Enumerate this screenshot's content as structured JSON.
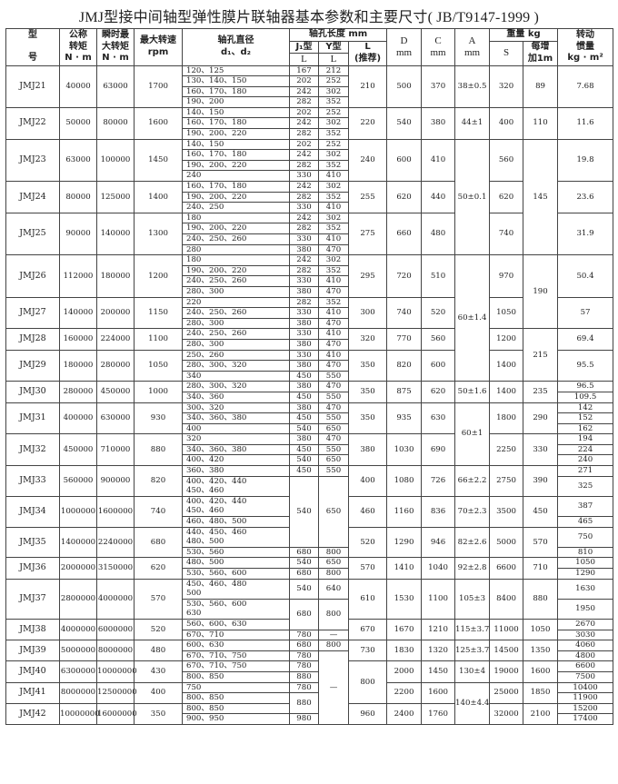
{
  "title": "JMJ型接中间轴型弹性膜片联轴器基本参数和主要尺寸",
  "standard": "( JB/T9147-1999 )",
  "header": {
    "model": "型\n\n号",
    "torque": "公称\n转矩\nN · m",
    "max_torque": "瞬时最\n大转矩\nN · m",
    "speed": "最大转速\nrpm",
    "bore": "轴孔直径\nd₁、d₂",
    "length": "轴孔长度 mm",
    "j_type": "J₁型",
    "y_type": "Y型",
    "l_rec": "L\n(推荐)",
    "j_l": "L",
    "y_l": "L",
    "d": "D\nmm",
    "c": "C\nmm",
    "a": "A\nmm",
    "weight": "重量 kg",
    "s": "S",
    "per_m": "每增\n加1m",
    "inertia": "转动\n惯量\nkg · m²"
  },
  "models": [
    {
      "model": "JMJ21",
      "torque": "40000",
      "max_torque": "63000",
      "speed": "1700",
      "bores": [
        {
          "d": "120、125",
          "J": "167",
          "Y": "212"
        },
        {
          "d": "130、140、150",
          "J": "202",
          "Y": "252"
        },
        {
          "d": "160、170、180",
          "J": "242",
          "Y": "302"
        },
        {
          "d": "190、200",
          "J": "282",
          "Y": "352"
        }
      ],
      "L": "210",
      "D": "500",
      "C": "370",
      "A": "38±0.5",
      "S": "320",
      "per_m": "89",
      "inertia": [
        "7.68"
      ]
    },
    {
      "model": "JMJ22",
      "torque": "50000",
      "max_torque": "80000",
      "speed": "1600",
      "bores": [
        {
          "d": "140、150",
          "J": "202",
          "Y": "252"
        },
        {
          "d": "160、170、180",
          "J": "242",
          "Y": "302"
        },
        {
          "d": "190、200、220",
          "J": "282",
          "Y": "352"
        }
      ],
      "L": "220",
      "D": "540",
      "C": "380",
      "A": "44±1",
      "S": "400",
      "per_m": "110",
      "inertia": [
        "11.6"
      ]
    },
    {
      "model": "JMJ23",
      "torque": "63000",
      "max_torque": "100000",
      "speed": "1450",
      "bores": [
        {
          "d": "140、150",
          "J": "202",
          "Y": "252"
        },
        {
          "d": "160、170、180",
          "J": "242",
          "Y": "302"
        },
        {
          "d": "190、200、220",
          "J": "282",
          "Y": "352"
        },
        {
          "d": "240",
          "J": "330",
          "Y": "410"
        }
      ],
      "L": "240",
      "D": "600",
      "C": "410",
      "A": "50±0.1",
      "S": "560",
      "per_m": "145",
      "inertia": [
        "19.8"
      ]
    },
    {
      "model": "JMJ24",
      "torque": "80000",
      "max_torque": "125000",
      "speed": "1400",
      "bores": [
        {
          "d": "160、170、180",
          "J": "242",
          "Y": "302"
        },
        {
          "d": "190、200、220",
          "J": "282",
          "Y": "352"
        },
        {
          "d": "240、250",
          "J": "330",
          "Y": "410"
        }
      ],
      "L": "255",
      "D": "620",
      "C": "440",
      "A": null,
      "S": "620",
      "per_m": null,
      "inertia": [
        "23.6"
      ]
    },
    {
      "model": "JMJ25",
      "torque": "90000",
      "max_torque": "140000",
      "speed": "1300",
      "bores": [
        {
          "d": "180",
          "J": "242",
          "Y": "302"
        },
        {
          "d": "190、200、220",
          "J": "282",
          "Y": "352"
        },
        {
          "d": "240、250、260",
          "J": "330",
          "Y": "410"
        },
        {
          "d": "280",
          "J": "380",
          "Y": "470"
        }
      ],
      "L": "275",
      "D": "660",
      "C": "480",
      "A": null,
      "S": "740",
      "per_m": null,
      "inertia": [
        "31.9"
      ]
    },
    {
      "model": "JMJ26",
      "torque": "112000",
      "max_torque": "180000",
      "speed": "1200",
      "bores": [
        {
          "d": "180",
          "J": "242",
          "Y": "302"
        },
        {
          "d": "190、200、220",
          "J": "282",
          "Y": "352"
        },
        {
          "d": "240、250、260",
          "J": "330",
          "Y": "410"
        },
        {
          "d": "280、300",
          "J": "380",
          "Y": "470"
        }
      ],
      "L": "295",
      "D": "720",
      "C": "510",
      "A": "60±1.4",
      "S": "970",
      "per_m": "190",
      "inertia": [
        "50.4"
      ]
    },
    {
      "model": "JMJ27",
      "torque": "140000",
      "max_torque": "200000",
      "speed": "1150",
      "bores": [
        {
          "d": "220",
          "J": "282",
          "Y": "352"
        },
        {
          "d": "240、250、260",
          "J": "330",
          "Y": "410"
        },
        {
          "d": "280、300",
          "J": "380",
          "Y": "470"
        }
      ],
      "L": "300",
      "D": "740",
      "C": "520",
      "A": null,
      "S": "1050",
      "per_m": null,
      "inertia": [
        "57"
      ]
    },
    {
      "model": "JMJ28",
      "torque": "160000",
      "max_torque": "224000",
      "speed": "1100",
      "bores": [
        {
          "d": "240、250、260",
          "J": "330",
          "Y": "410"
        },
        {
          "d": "280、300",
          "J": "380",
          "Y": "470"
        }
      ],
      "L": "320",
      "D": "770",
      "C": "560",
      "A": null,
      "S": "1200",
      "per_m": "215",
      "inertia": [
        "69.4"
      ]
    },
    {
      "model": "JMJ29",
      "torque": "180000",
      "max_torque": "280000",
      "speed": "1050",
      "bores": [
        {
          "d": "250、260",
          "J": "330",
          "Y": "410"
        },
        {
          "d": "280、300、320",
          "J": "380",
          "Y": "470"
        },
        {
          "d": "340",
          "J": "450",
          "Y": "550"
        }
      ],
      "L": "350",
      "D": "820",
      "C": "600",
      "A": null,
      "S": "1400",
      "per_m": null,
      "inertia": [
        "95.5"
      ]
    },
    {
      "model": "JMJ30",
      "torque": "280000",
      "max_torque": "450000",
      "speed": "1000",
      "bores": [
        {
          "d": "280、300、320",
          "J": "380",
          "Y": "470"
        },
        {
          "d": "340、360",
          "J": "450",
          "Y": "550"
        }
      ],
      "L": "350",
      "D": "875",
      "C": "620",
      "A": "50±1.6",
      "S": "1400",
      "per_m": "235",
      "inertia": [
        "96.5",
        "109.5"
      ]
    },
    {
      "model": "JMJ31",
      "torque": "400000",
      "max_torque": "630000",
      "speed": "930",
      "bores": [
        {
          "d": "300、320",
          "J": "380",
          "Y": "470"
        },
        {
          "d": "340、360、380",
          "J": "450",
          "Y": "550"
        },
        {
          "d": "400",
          "J": "540",
          "Y": "650"
        }
      ],
      "L": "350",
      "D": "935",
      "C": "630",
      "A": "60±1",
      "S": "1800",
      "per_m": "290",
      "inertia": [
        "142",
        "152",
        "162"
      ]
    },
    {
      "model": "JMJ32",
      "torque": "450000",
      "max_torque": "710000",
      "speed": "880",
      "bores": [
        {
          "d": "320",
          "J": "380",
          "Y": "470"
        },
        {
          "d": "340、360、380",
          "J": "450",
          "Y": "550"
        },
        {
          "d": "400、420",
          "J": "540",
          "Y": "650"
        }
      ],
      "L": "380",
      "D": "1030",
      "C": "690",
      "A": null,
      "S": "2250",
      "per_m": "330",
      "inertia": [
        "194",
        "224",
        "240"
      ]
    },
    {
      "model": "JMJ33",
      "torque": "560000",
      "max_torque": "900000",
      "speed": "820",
      "bores": [
        {
          "d": "360、380",
          "J": "450",
          "Y": "550"
        },
        {
          "d": "400、420、440\n450、460",
          "J": "540",
          "Y": "650"
        }
      ],
      "L": "400",
      "D": "1080",
      "C": "726",
      "A": "66±2.2",
      "S": "2750",
      "per_m": "390",
      "inertia": [
        "271",
        "325"
      ]
    },
    {
      "model": "JMJ34",
      "torque": "1000000",
      "max_torque": "1600000",
      "speed": "740",
      "bores": [
        {
          "d": "400、420、440\n450、460",
          "J": null,
          "Y": null
        },
        {
          "d": "460、480、500",
          "J": null,
          "Y": null
        }
      ],
      "L": "460",
      "D": "1160",
      "C": "836",
      "A": "70±2.3",
      "S": "3500",
      "per_m": "450",
      "inertia": [
        "387",
        "465"
      ]
    },
    {
      "model": "JMJ35",
      "torque": "1400000",
      "max_torque": "2240000",
      "speed": "680",
      "bores": [
        {
          "d": "440、450、460\n480、500",
          "J": null,
          "Y": null
        },
        {
          "d": "530、560",
          "J": "680",
          "Y": "800"
        }
      ],
      "L": "520",
      "D": "1290",
      "C": "946",
      "A": "82±2.6",
      "S": "5000",
      "per_m": "570",
      "inertia": [
        "750",
        "810"
      ]
    },
    {
      "model": "JMJ36",
      "torque": "2000000",
      "max_torque": "3150000",
      "speed": "620",
      "bores": [
        {
          "d": "480、500",
          "J": "540",
          "Y": "650"
        },
        {
          "d": "530、560、600",
          "J": "680",
          "Y": "800"
        }
      ],
      "L": "570",
      "D": "1410",
      "C": "1040",
      "A": "92±2.8",
      "S": "6600",
      "per_m": "710",
      "inertia": [
        "1050",
        "1290"
      ]
    },
    {
      "model": "JMJ37",
      "torque": "2800000",
      "max_torque": "4000000",
      "speed": "570",
      "bores": [
        {
          "d": "450、460、480\n500",
          "J": "540",
          "Y": "640"
        },
        {
          "d": "530、560、600\n630",
          "J": "680",
          "Y": "800"
        }
      ],
      "L": "610",
      "D": "1530",
      "C": "1100",
      "A": "105±3",
      "S": "8400",
      "per_m": "880",
      "inertia": [
        "1630",
        "1950"
      ]
    },
    {
      "model": "JMJ38",
      "torque": "4000000",
      "max_torque": "6000000",
      "speed": "520",
      "bores": [
        {
          "d": "560、600、630",
          "J": null,
          "Y": null
        },
        {
          "d": "670、710",
          "J": "780",
          "Y": "—"
        }
      ],
      "L": "670",
      "D": "1670",
      "C": "1210",
      "A": "115±3.7",
      "S": "11000",
      "per_m": "1050",
      "inertia": [
        "2670",
        "3030"
      ]
    },
    {
      "model": "JMJ39",
      "torque": "5000000",
      "max_torque": "8000000",
      "speed": "480",
      "bores": [
        {
          "d": "600、630",
          "J": "680",
          "Y": "800"
        },
        {
          "d": "670、710、750",
          "J": "780",
          "Y": "—"
        }
      ],
      "L": "730",
      "D": "1830",
      "C": "1320",
      "A": "125±3.7",
      "S": "14500",
      "per_m": "1350",
      "inertia": [
        "4060",
        "4800"
      ]
    },
    {
      "model": "JMJ40",
      "torque": "6300000",
      "max_torque": "10000000",
      "speed": "430",
      "bores": [
        {
          "d": "670、710、750",
          "J": "780",
          "Y": null
        },
        {
          "d": "800、850",
          "J": "880",
          "Y": null
        }
      ],
      "L": "800",
      "D": "2000",
      "C": "1450",
      "A": "130±4",
      "S": "19000",
      "per_m": "1600",
      "inertia": [
        "6600",
        "7500"
      ]
    },
    {
      "model": "JMJ41",
      "torque": "8000000",
      "max_torque": "12500000",
      "speed": "400",
      "bores": [
        {
          "d": "750",
          "J": "780",
          "Y": null
        },
        {
          "d": "800、850",
          "J": "880",
          "Y": null
        }
      ],
      "L": null,
      "D": "2200",
      "C": "1600",
      "A": "140±4.4",
      "S": "25000",
      "per_m": "1850",
      "inertia": [
        "10400",
        "11900"
      ]
    },
    {
      "model": "JMJ42",
      "torque": "10000000",
      "max_torque": "16000000",
      "speed": "350",
      "bores": [
        {
          "d": "800、850",
          "J": null,
          "Y": null
        },
        {
          "d": "900、950",
          "J": "980",
          "Y": null
        }
      ],
      "L": "960",
      "D": "2400",
      "C": "1760",
      "A": null,
      "S": "32000",
      "per_m": "2100",
      "inertia": [
        "15200",
        "17400"
      ]
    }
  ]
}
